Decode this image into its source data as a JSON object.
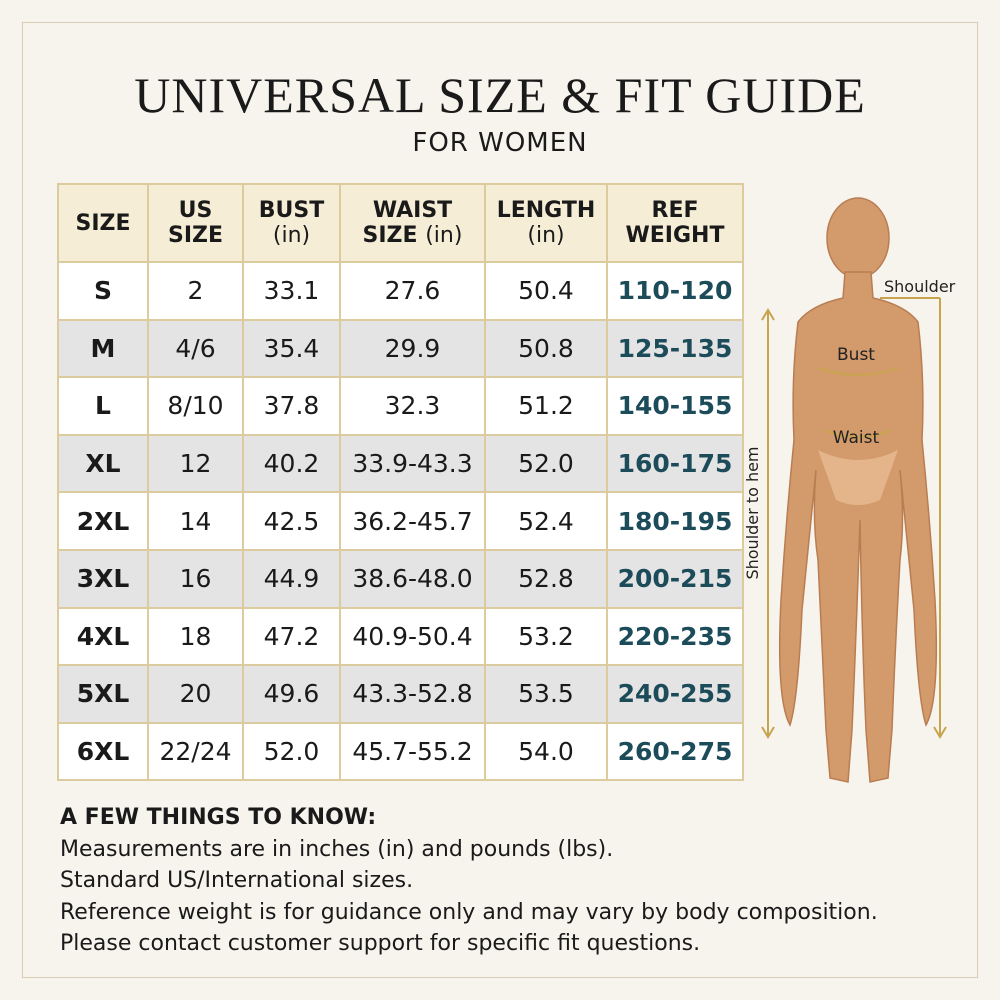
{
  "header": {
    "title": "UNIVERSAL SIZE & FIT GUIDE",
    "subtitle": "FOR WOMEN"
  },
  "table": {
    "headers": [
      {
        "label": "SIZE"
      },
      {
        "label": "US SIZE"
      },
      {
        "label": "BUST",
        "unit": "(in)"
      },
      {
        "label": "WAIST SIZE",
        "unit": "(in)"
      },
      {
        "label": "LENGTH",
        "unit": "(in)"
      },
      {
        "label": "REF WEIGHT"
      }
    ],
    "rows": [
      [
        "S",
        "2",
        "33.1",
        "27.6",
        "50.4",
        "110-120"
      ],
      [
        "M",
        "4/6",
        "35.4",
        "29.9",
        "50.8",
        "125-135"
      ],
      [
        "L",
        "8/10",
        "37.8",
        "32.3",
        "51.2",
        "140-155"
      ],
      [
        "XL",
        "12",
        "40.2",
        "33.9-43.3",
        "52.0",
        "160-175"
      ],
      [
        "2XL",
        "14",
        "42.5",
        "36.2-45.7",
        "52.4",
        "180-195"
      ],
      [
        "3XL",
        "16",
        "44.9",
        "38.6-48.0",
        "52.8",
        "200-215"
      ],
      [
        "4XL",
        "18",
        "47.2",
        "40.9-50.4",
        "53.2",
        "220-235"
      ],
      [
        "5XL",
        "20",
        "49.6",
        "43.3-52.8",
        "53.5",
        "240-255"
      ],
      [
        "6XL",
        "22/24",
        "52.0",
        "45.7-55.2",
        "54.0",
        "260-275"
      ]
    ]
  },
  "figure": {
    "shoulder": "Shoulder",
    "bust": "Bust",
    "waist": "Waist",
    "length": "Shoulder to hem"
  },
  "notes": {
    "heading": "A FEW THINGS TO KNOW:",
    "lines": [
      "Measurements are in inches (in) and pounds (lbs).",
      "Standard US/International sizes.",
      "Reference weight is for guidance only and may vary by body composition.",
      "Please contact customer support for specific fit questions."
    ]
  }
}
